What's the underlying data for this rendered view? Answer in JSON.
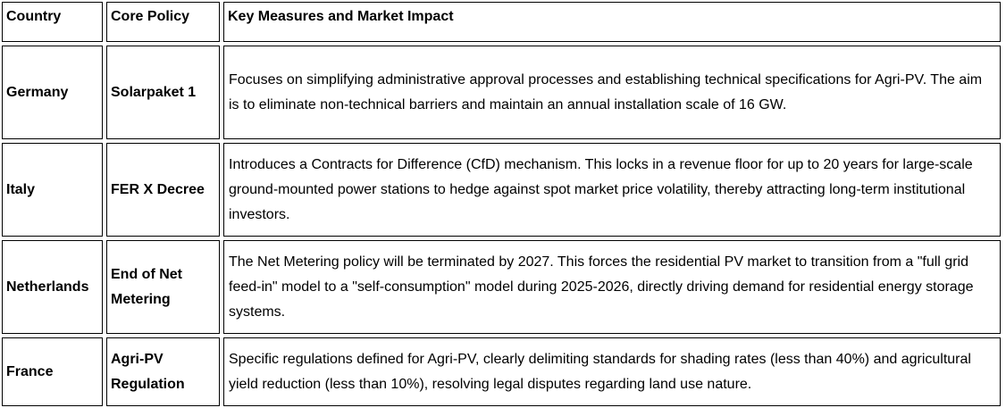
{
  "table": {
    "headers": [
      "Country",
      "Core Policy",
      "Key Measures and Market Impact"
    ],
    "rows": [
      {
        "country": "Germany",
        "policy": "Solarpaket 1",
        "impact": "Focuses on simplifying administrative approval processes and establishing technical specifications for Agri-PV. The aim is to eliminate non-technical barriers and maintain an annual installation scale of 16 GW."
      },
      {
        "country": "Italy",
        "policy": "FER X Decree",
        "impact": "Introduces a Contracts for Difference (CfD) mechanism. This locks in a revenue floor for up to 20 years for large-scale ground-mounted power stations to hedge against spot market price volatility, thereby attracting long-term institutional investors."
      },
      {
        "country": "Netherlands",
        "policy": "End of Net Metering",
        "impact": "The Net Metering policy will be terminated by 2027. This forces the residential PV market to transition from a \"full grid feed-in\" model to a \"self-consumption\" model during 2025-2026, directly driving demand for residential energy storage systems."
      },
      {
        "country": "France",
        "policy": "Agri-PV Regulation",
        "impact": "Specific regulations defined for Agri-PV, clearly delimiting standards for shading rates (less than 40%) and agricultural yield reduction (less than 10%), resolving legal disputes regarding land use nature."
      }
    ],
    "colors": {
      "border": "#000000",
      "text": "#000000",
      "background": "#ffffff"
    }
  }
}
